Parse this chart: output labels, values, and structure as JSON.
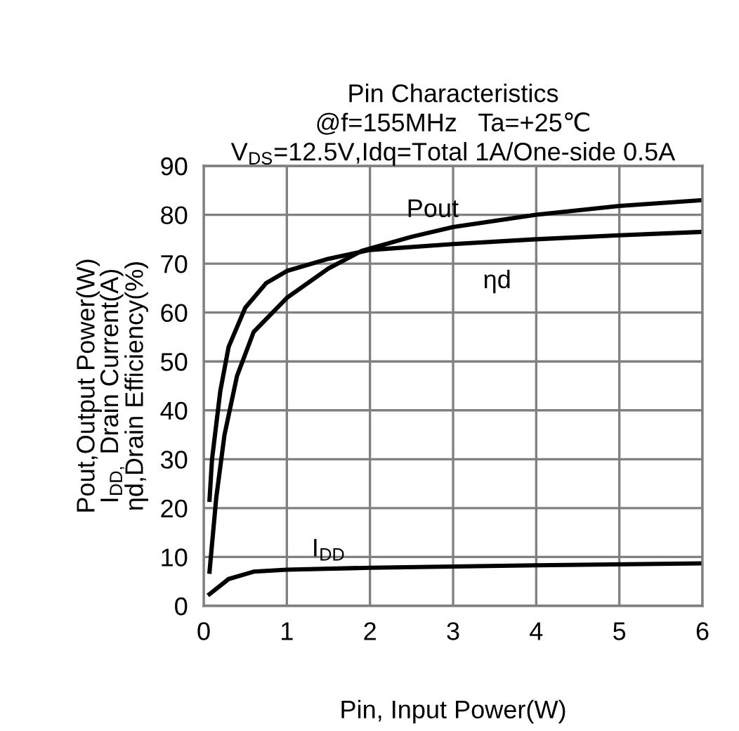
{
  "chart_data": {
    "type": "line",
    "title": "Pin Characteristics\n@f=155MHz   Ta=+25℃\nV$_{DS}$=12.5V,Idq=Total 1A/One-side 0.5A",
    "xlabel": "Pin, Input Power(W)",
    "ylabel": "Pout,Output Power(W)\nI$_{DD,}$ Drain Current(A)\nηd,Drain Efficiency(%)",
    "series": [
      {
        "name": "Pout",
        "color": "#000000",
        "x": [
          0.07,
          0.15,
          0.25,
          0.4,
          0.6,
          1.0,
          1.5,
          1.9,
          2.5,
          3,
          4,
          5,
          6
        ],
        "values": [
          7,
          22,
          35,
          47,
          56,
          63,
          69,
          72.6,
          75.5,
          77.5,
          80,
          81.8,
          83
        ]
      },
      {
        "name": "ηd",
        "color": "#000000",
        "x": [
          0.07,
          0.1,
          0.2,
          0.3,
          0.5,
          0.75,
          1.0,
          1.5,
          2,
          3,
          4,
          5,
          6
        ],
        "values": [
          21.7,
          30,
          44,
          53,
          61,
          66,
          68.5,
          71,
          72.8,
          74,
          75,
          75.8,
          76.5
        ]
      },
      {
        "name": "I$_{DD}$",
        "color": "#000000",
        "x": [
          0.07,
          0.3,
          0.6,
          1.0,
          2,
          4,
          6
        ],
        "values": [
          2.4,
          5.5,
          7,
          7.4,
          7.8,
          8.3,
          8.7
        ]
      }
    ],
    "xlim": [
      0,
      6
    ],
    "xticks": [
      0,
      1,
      2,
      3,
      4,
      5,
      6
    ],
    "ylim": [
      0,
      90
    ],
    "yticks": [
      0,
      10,
      20,
      30,
      40,
      50,
      60,
      70,
      80,
      90
    ],
    "grid": true,
    "marker": "none",
    "line_style": "solid"
  }
}
